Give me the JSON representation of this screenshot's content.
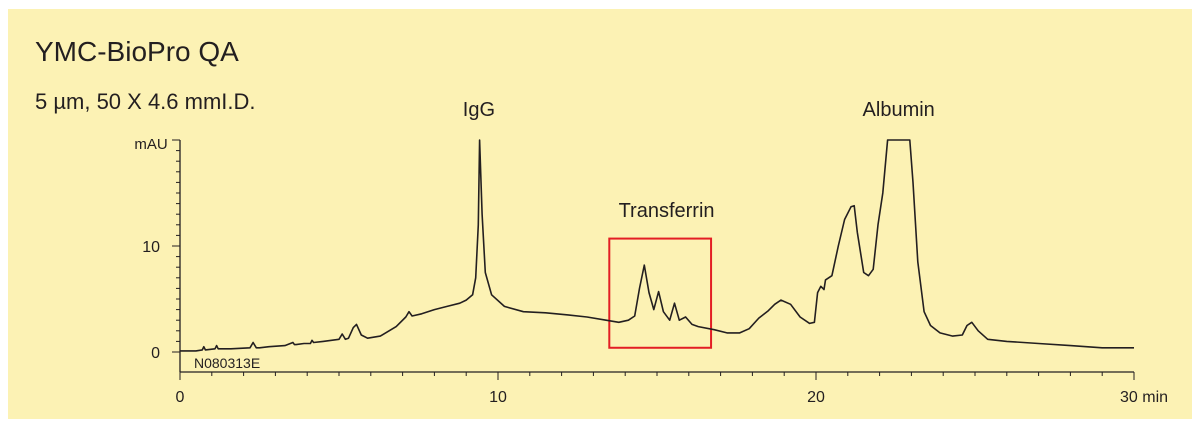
{
  "header": {
    "title": "YMC-BioPro QA",
    "subtitle": "5 µm, 50 X 4.6 mmI.D."
  },
  "colors": {
    "background": "#fcf2b4",
    "trace": "#231f20",
    "highlight_box": "#e31e24"
  },
  "chart_data": {
    "type": "line",
    "title": "YMC-BioPro QA",
    "subtitle": "5 µm, 50 X 4.6 mmI.D.",
    "xlabel": "min",
    "ylabel": "mAU",
    "xlim": [
      0,
      30
    ],
    "ylim": [
      0,
      20
    ],
    "x_ticks": [
      0,
      10,
      20,
      30
    ],
    "x_tick_labels": [
      "0",
      "10",
      "20",
      "30 min"
    ],
    "y_ticks": [
      0,
      10
    ],
    "y_tick_labels": [
      "0",
      "10"
    ],
    "grid": false,
    "sample_id": "N080313E",
    "peak_labels": [
      {
        "text": "IgG",
        "x": 9.4
      },
      {
        "text": "Transferrin",
        "x": 15.3
      },
      {
        "text": "Albumin",
        "x": 22.6
      }
    ],
    "highlight_box": {
      "x_range": [
        13.5,
        16.7
      ],
      "y_range": [
        0.4,
        10.7
      ]
    },
    "series": [
      {
        "x": [
          0,
          0.5,
          0.7,
          0.75,
          0.8,
          1.1,
          1.15,
          1.2,
          1.6,
          2.2,
          2.3,
          2.4,
          2.5,
          2.8,
          3.3,
          3.55,
          3.6,
          3.65,
          3.9,
          4.1,
          4.15,
          4.2,
          4.5,
          5.0,
          5.1,
          5.2,
          5.3,
          5.45,
          5.55,
          5.7,
          5.9,
          6.3,
          6.8,
          7.1,
          7.2,
          7.3,
          7.6,
          8.0,
          8.4,
          8.8,
          9.0,
          9.2,
          9.3,
          9.38,
          9.42,
          9.5,
          9.6,
          9.8,
          10.2,
          10.8,
          11.5,
          12.2,
          12.8,
          13.4,
          13.8,
          14.1,
          14.3,
          14.45,
          14.6,
          14.75,
          14.9,
          15.05,
          15.2,
          15.4,
          15.55,
          15.7,
          15.9,
          16.1,
          16.3,
          16.8,
          17.2,
          17.6,
          17.9,
          18.2,
          18.5,
          18.7,
          18.9,
          19.2,
          19.5,
          19.8,
          19.95,
          20.05,
          20.15,
          20.25,
          20.3,
          20.5,
          20.7,
          20.9,
          21.1,
          21.2,
          21.3,
          21.5,
          21.65,
          21.8,
          21.95,
          22.1,
          22.25,
          22.35,
          22.45,
          22.95,
          23.05,
          23.2,
          23.4,
          23.6,
          23.9,
          24.3,
          24.6,
          24.75,
          24.9,
          25.1,
          25.4,
          26.0,
          27.0,
          28.0,
          29.0,
          30.0
        ],
        "y": [
          0.1,
          0.1,
          0.2,
          0.5,
          0.2,
          0.3,
          0.6,
          0.3,
          0.3,
          0.4,
          0.9,
          0.4,
          0.4,
          0.5,
          0.6,
          0.9,
          0.7,
          0.7,
          0.8,
          0.8,
          1.1,
          0.9,
          1.0,
          1.2,
          1.7,
          1.2,
          1.3,
          2.3,
          2.6,
          1.6,
          1.3,
          1.5,
          2.4,
          3.3,
          3.8,
          3.4,
          3.6,
          4.0,
          4.3,
          4.6,
          4.9,
          5.4,
          7.0,
          12.0,
          20.0,
          13.0,
          7.5,
          5.4,
          4.3,
          3.8,
          3.7,
          3.5,
          3.3,
          3.0,
          2.8,
          3.0,
          3.4,
          6.0,
          8.2,
          5.6,
          4.0,
          5.7,
          3.8,
          3.0,
          4.6,
          3.0,
          3.3,
          2.6,
          2.4,
          2.1,
          1.8,
          1.8,
          2.2,
          3.2,
          3.9,
          4.5,
          4.9,
          4.5,
          3.3,
          2.7,
          2.8,
          5.6,
          6.2,
          5.9,
          6.8,
          7.2,
          10.0,
          12.5,
          13.7,
          13.8,
          11.3,
          7.5,
          7.2,
          7.8,
          12.0,
          15.0,
          20.0,
          20.0,
          20.0,
          20.0,
          16.0,
          8.5,
          3.8,
          2.5,
          1.8,
          1.5,
          1.6,
          2.5,
          2.8,
          2.0,
          1.2,
          1.0,
          0.8,
          0.6,
          0.4,
          0.4
        ]
      }
    ]
  }
}
